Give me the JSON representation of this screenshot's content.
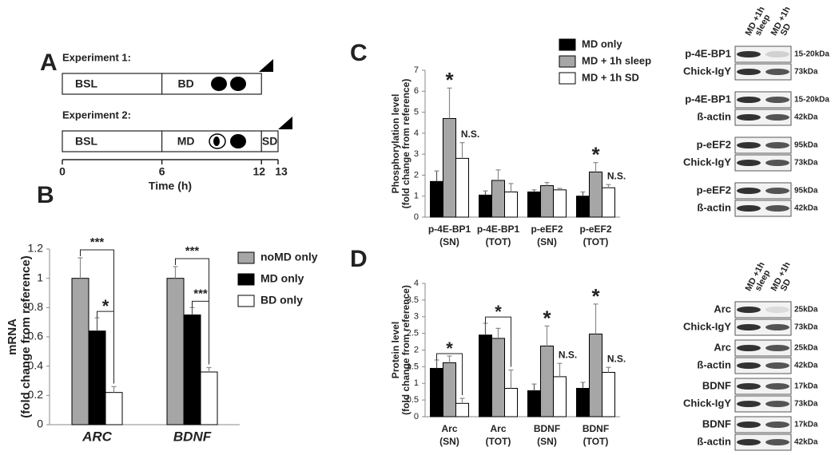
{
  "panels": [
    "A",
    "B",
    "C",
    "D"
  ],
  "timeline": {
    "xlim": [
      0,
      13
    ],
    "xticks": [
      0,
      6,
      12,
      13
    ],
    "xlabel": "Time (h)",
    "experiments": [
      {
        "label": "Experiment 1:",
        "segments": [
          {
            "label": "BSL",
            "start": 0,
            "end": 6
          },
          {
            "label": "BD",
            "start": 6,
            "end": 12
          }
        ]
      },
      {
        "label": "Experiment 2:",
        "segments": [
          {
            "label": "BSL",
            "start": 0,
            "end": 6
          },
          {
            "label": "MD",
            "start": 6,
            "end": 12
          },
          {
            "label": "SD",
            "start": 12,
            "end": 13
          }
        ]
      }
    ]
  },
  "chart_data": [
    {
      "type": "bar",
      "ylabel": [
        "mRNA",
        "(fold change from reference)"
      ],
      "categories": [
        [
          "ARC"
        ],
        [
          "BDNF"
        ]
      ],
      "ylim": [
        0,
        1.2
      ],
      "yticks": [
        0,
        0.2,
        0.4,
        0.6,
        0.8,
        1,
        1.2
      ],
      "legend": "right",
      "series": [
        {
          "name": "noMD only",
          "color": "#a6a6a6",
          "values": [
            1,
            1
          ],
          "errors": [
            0.14,
            0.08
          ]
        },
        {
          "name": "MD only",
          "color": "#000000",
          "values": [
            0.64,
            0.75
          ],
          "errors": [
            0.09,
            0.05
          ]
        },
        {
          "name": "BD only",
          "color": "#ffffff",
          "values": [
            0.22,
            0.36
          ],
          "errors": [
            0.04,
            0.03
          ]
        }
      ],
      "annotations": [
        {
          "text": "***",
          "category": 0,
          "series": [
            0,
            2
          ]
        },
        {
          "text": "*",
          "category": 0,
          "series": [
            1,
            2
          ]
        },
        {
          "text": "***",
          "category": 1,
          "series": [
            0,
            2
          ]
        },
        {
          "text": "***",
          "category": 1,
          "series": [
            1,
            2
          ]
        }
      ]
    },
    {
      "type": "bar",
      "ylabel": [
        "Phosphorylation level",
        "(fold change from reference)"
      ],
      "categories": [
        [
          "p-4E-BP1",
          "(SN)"
        ],
        [
          "p-4E-BP1",
          "(TOT)"
        ],
        [
          "p-eEF2",
          "(SN)"
        ],
        [
          "p-eEF2",
          "(TOT)"
        ]
      ],
      "ylim": [
        0,
        7
      ],
      "yticks": [
        0,
        1,
        2,
        3,
        4,
        5,
        6,
        7
      ],
      "legend": "top-right",
      "series": [
        {
          "name": "MD only",
          "color": "#000000",
          "values": [
            1.7,
            1.05,
            1.2,
            1.0
          ],
          "errors": [
            0.5,
            0.2,
            0.1,
            0.2
          ]
        },
        {
          "name": "MD + 1h sleep",
          "color": "#a6a6a6",
          "values": [
            4.7,
            1.75,
            1.5,
            2.15
          ],
          "errors": [
            1.45,
            0.5,
            0.15,
            0.45
          ]
        },
        {
          "name": "MD + 1h SD",
          "color": "#ffffff",
          "values": [
            2.8,
            1.2,
            1.3,
            1.4
          ],
          "errors": [
            0.75,
            0.4,
            0.07,
            0.15
          ]
        }
      ],
      "annotations": [
        {
          "text": "*",
          "category": 0,
          "series": [
            1
          ]
        },
        {
          "text": "N.S.",
          "category": 0,
          "series": [
            2
          ]
        },
        {
          "text": "*",
          "category": 3,
          "series": [
            1
          ]
        },
        {
          "text": "N.S.",
          "category": 3,
          "series": [
            2
          ]
        }
      ]
    },
    {
      "type": "bar",
      "ylabel": [
        "Protein level",
        "(fold change from reference)"
      ],
      "categories": [
        [
          "Arc",
          "(SN)"
        ],
        [
          "Arc",
          "(TOT)"
        ],
        [
          "BDNF",
          "(SN)"
        ],
        [
          "BDNF",
          "(TOT)"
        ]
      ],
      "ylim": [
        0,
        4
      ],
      "yticks": [
        0,
        0.5,
        1,
        1.5,
        2,
        2.5,
        3,
        3.5,
        4
      ],
      "series": [
        {
          "color": "#000000",
          "values": [
            1.45,
            2.45,
            0.78,
            0.85
          ],
          "errors": [
            0.25,
            0.35,
            0.2,
            0.18
          ]
        },
        {
          "color": "#a6a6a6",
          "values": [
            1.62,
            2.35,
            2.12,
            2.48
          ],
          "errors": [
            0.2,
            0.3,
            0.6,
            0.9
          ]
        },
        {
          "color": "#ffffff",
          "values": [
            0.4,
            0.85,
            1.2,
            1.33
          ],
          "errors": [
            0.15,
            0.55,
            0.4,
            0.15
          ]
        }
      ],
      "annotations": [
        {
          "text": "*",
          "category": 0,
          "series": [
            0,
            2
          ]
        },
        {
          "text": "*",
          "category": 1,
          "series": [
            0,
            2
          ]
        },
        {
          "text": "*",
          "category": 2,
          "series": [
            1
          ]
        },
        {
          "text": "N.S.",
          "category": 2,
          "series": [
            2
          ]
        },
        {
          "text": "*",
          "category": 3,
          "series": [
            1
          ]
        },
        {
          "text": "N.S.",
          "category": 3,
          "series": [
            2
          ]
        }
      ]
    }
  ],
  "blots": [
    {
      "lanes": [
        [
          "MD +1h",
          "sleep"
        ],
        [
          "MD +1h",
          "SD"
        ]
      ],
      "groups": [
        [
          {
            "label": "p-4E-BP1",
            "size": "15-20kDa"
          },
          {
            "label": "Chick-IgY",
            "size": "73kDa"
          }
        ],
        [
          {
            "label": "p-4E-BP1",
            "size": "15-20kDa"
          },
          {
            "label": "ß-actin",
            "size": "42kDa"
          }
        ],
        [
          {
            "label": "p-eEF2",
            "size": "95kDa"
          },
          {
            "label": "Chick-IgY",
            "size": "73kDa"
          }
        ],
        [
          {
            "label": "p-eEF2",
            "size": "95kDa"
          },
          {
            "label": "ß-actin",
            "size": "42kDa"
          }
        ]
      ]
    },
    {
      "lanes": [
        [
          "MD +1h",
          "sleep"
        ],
        [
          "MD +1h",
          "SD"
        ]
      ],
      "groups": [
        [
          {
            "label": "Arc",
            "size": "25kDa"
          },
          {
            "label": "Chick-IgY",
            "size": "73kDa"
          }
        ],
        [
          {
            "label": "Arc",
            "size": "25kDa"
          },
          {
            "label": "ß-actin",
            "size": "42kDa"
          }
        ],
        [
          {
            "label": "BDNF",
            "size": "17kDa"
          },
          {
            "label": "Chick-IgY",
            "size": "73kDa"
          }
        ],
        [
          {
            "label": "BDNF",
            "size": "17kDa"
          },
          {
            "label": "ß-actin",
            "size": "42kDa"
          }
        ]
      ]
    }
  ]
}
